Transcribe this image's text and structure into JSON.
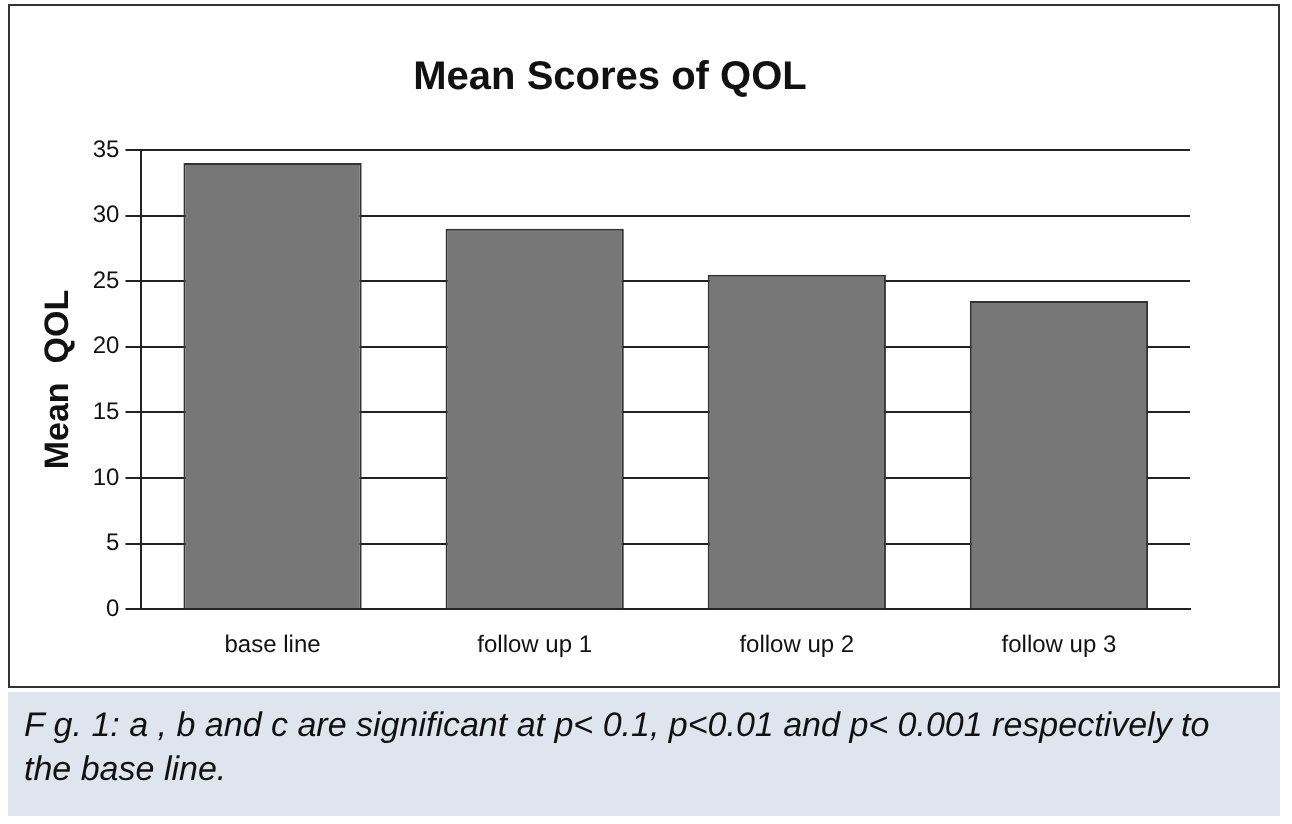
{
  "chart_data": {
    "type": "bar",
    "title": "Mean Scores of QOL",
    "ylabel": "Mean  QOL",
    "categories": [
      "base line",
      "follow up 1",
      "follow up 2",
      "follow up 3"
    ],
    "values": [
      34,
      29,
      25.5,
      23.5
    ],
    "color": "#777777",
    "ylim": [
      0,
      35
    ],
    "yticks": [
      0,
      5,
      10,
      15,
      20,
      25,
      30,
      35
    ],
    "grid": "y",
    "legend": false,
    "annotations": [
      "F g. 1: a , b and c are significant at p< 0.1, p<0.01 and p< 0.001 respectively to the base line."
    ]
  }
}
